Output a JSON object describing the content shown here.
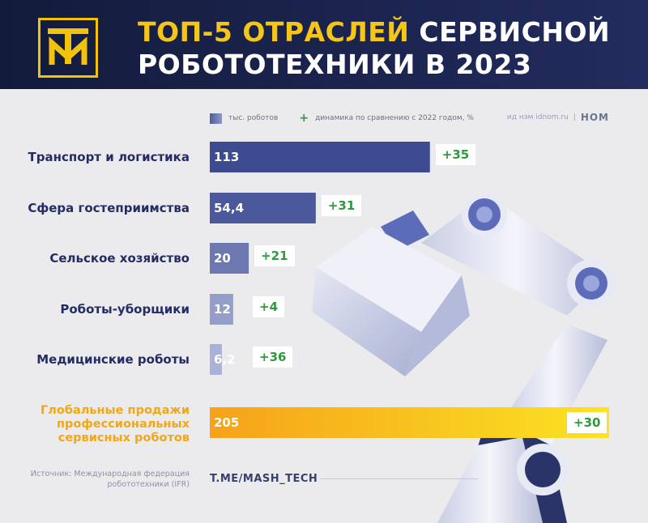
{
  "header": {
    "title_highlight": "ТОП-5 ОТРАСЛЕЙ",
    "title_rest_line1": "СЕРВИСНОЙ",
    "title_line2": "РОБОТОТЕХНИКИ В 2023"
  },
  "legend": {
    "bar_label": "тыс. роботов",
    "change_symbol": "+",
    "change_label": "динамика по сравнению с 2022 годом, %"
  },
  "credits": {
    "site": "ид нэм idnom.ru",
    "separator": "|",
    "brand": "НОМ"
  },
  "colors": {
    "navy": "#232c63",
    "accent_yellow": "#f5c518",
    "total_orange": "#f3a712",
    "positive_green": "#2f9a3c"
  },
  "chart_data": {
    "type": "bar",
    "orientation": "horizontal",
    "categories": [
      "Транспорт и логистика",
      "Сфера гостеприимства",
      "Сельское хозяйство",
      "Роботы-уборщики",
      "Медицинские роботы"
    ],
    "series": [
      {
        "name": "тыс. роботов",
        "values": [
          113,
          54.4,
          20,
          12,
          6.2
        ],
        "value_labels": [
          "113",
          "54,4",
          "20",
          "12",
          "6,2"
        ]
      },
      {
        "name": "динамика по сравнению с 2022 годом, %",
        "values": [
          35,
          31,
          21,
          4,
          36
        ],
        "value_labels": [
          "+35",
          "+31",
          "+21",
          "+4",
          "+36"
        ]
      }
    ],
    "total": {
      "label": "Глобальные продажи профессиональных сервисных роботов",
      "value": 205,
      "value_label": "205",
      "change": 30,
      "change_label": "+30"
    },
    "legend_position": "top"
  },
  "footer": {
    "source": "Источник: Международная федерация робототехники (IFR)",
    "channel": "T.ME/MASH_TECH"
  }
}
